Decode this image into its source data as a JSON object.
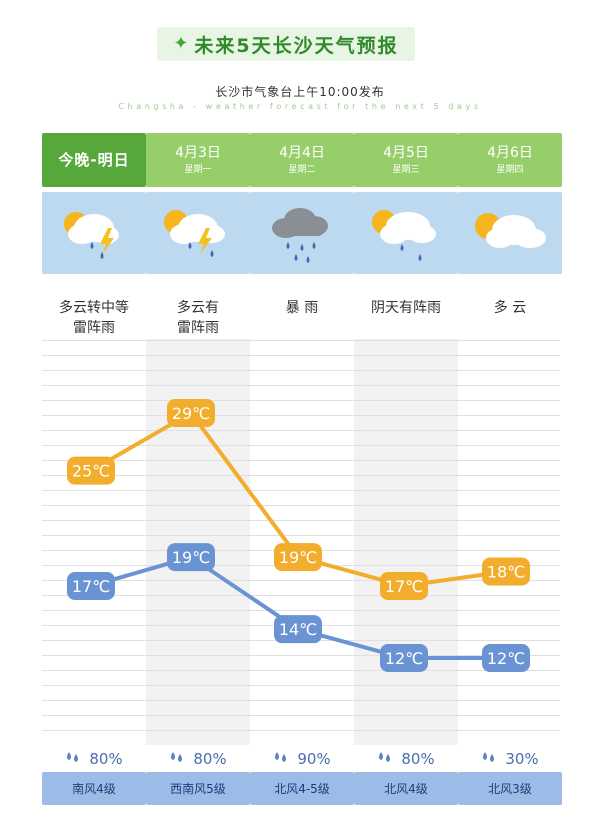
{
  "header": {
    "title": "未来5天长沙天气预报",
    "subtitle": "长沙市气象台上午10:00发布",
    "subtitle_en": "Changsha - weather forecast for the next 5 days"
  },
  "days": [
    {
      "date": "今晚-明日",
      "week": "",
      "icon": "thunderstorm-icon",
      "condition_lines": [
        "多云转中等",
        "雷阵雨"
      ],
      "rain": "80%",
      "wind": "南风4级"
    },
    {
      "date": "4月3日",
      "week": "星期一",
      "icon": "thunderstorm-icon",
      "condition_lines": [
        "多云有",
        "雷阵雨"
      ],
      "rain": "80%",
      "wind": "西南风5级"
    },
    {
      "date": "4月4日",
      "week": "星期二",
      "icon": "heavy-rain-icon",
      "condition_lines": [
        "暴  雨",
        ""
      ],
      "rain": "90%",
      "wind": "北风4-5级"
    },
    {
      "date": "4月5日",
      "week": "星期三",
      "icon": "shower-icon",
      "condition_lines": [
        "阴天有阵雨",
        ""
      ],
      "rain": "80%",
      "wind": "北风4级"
    },
    {
      "date": "4月6日",
      "week": "星期四",
      "icon": "cloudy-icon",
      "condition_lines": [
        "多  云",
        ""
      ],
      "rain": "30%",
      "wind": "北风3级"
    }
  ],
  "chart_data": {
    "type": "line",
    "categories": [
      "今晚-明日",
      "4月3日",
      "4月4日",
      "4月5日",
      "4月6日"
    ],
    "series": [
      {
        "values": [
          25,
          29,
          19,
          17,
          18
        ],
        "labels": [
          "25℃",
          "29℃",
          "19℃",
          "17℃",
          "18℃"
        ],
        "color": "#f2ad2c"
      },
      {
        "values": [
          17,
          19,
          14,
          12,
          12
        ],
        "labels": [
          "17℃",
          "19℃",
          "14℃",
          "12℃",
          "12℃"
        ],
        "color": "#6a93d4"
      }
    ],
    "ylim": [
      10,
      32
    ]
  },
  "colors": {
    "header_today": "#56a83b",
    "header_day": "#96cf6a",
    "icon_bg": "#bcd9ef",
    "wind_bg": "#9cbbe6",
    "high_line": "#f2ad2c",
    "low_line": "#6a93d4"
  }
}
